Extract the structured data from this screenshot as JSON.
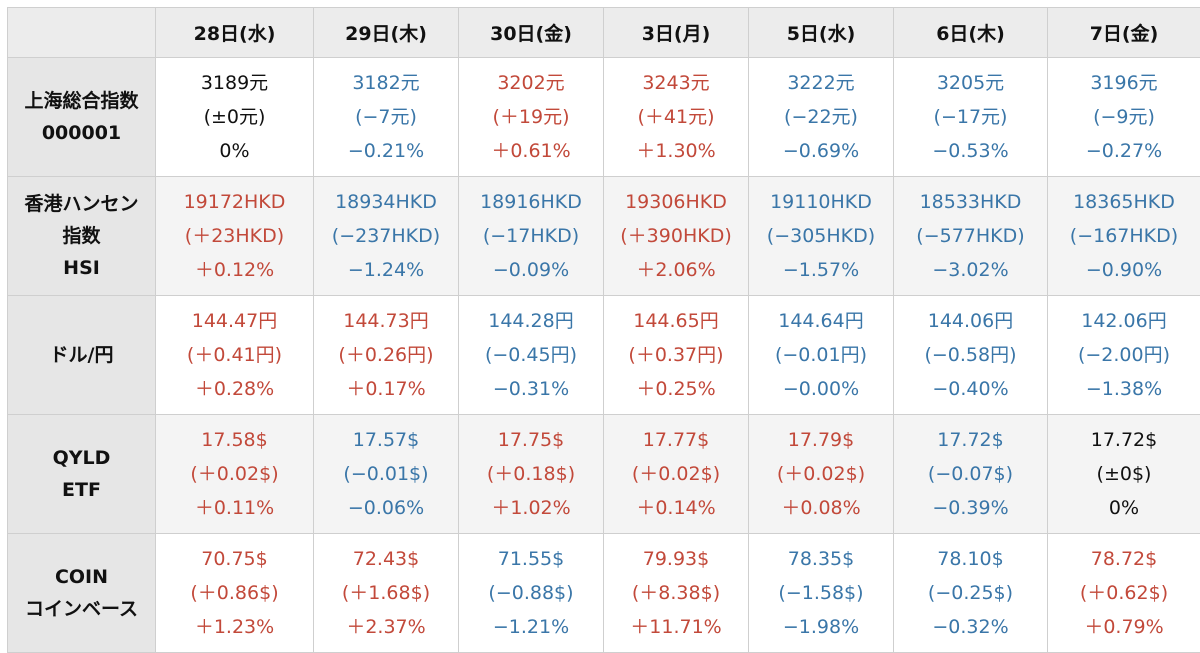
{
  "colors": {
    "up": "#c2493a",
    "down": "#3a76a8",
    "flat": "#111111",
    "header_bg": "#ececec",
    "rowhead_bg": "#e6e6e6"
  },
  "columns": [
    "28日(水)",
    "29日(木)",
    "30日(金)",
    "3日(月)",
    "5日(水)",
    "6日(木)",
    "7日(金)"
  ],
  "rows": [
    {
      "label": [
        "上海総合指数",
        "000001"
      ],
      "cells": [
        {
          "dir": "flat",
          "price": "3189元",
          "change": "(±0元)",
          "pct": "0%"
        },
        {
          "dir": "down",
          "price": "3182元",
          "change": "(−7元)",
          "pct": "−0.21%"
        },
        {
          "dir": "up",
          "price": "3202元",
          "change": "(＋19元)",
          "pct": "＋0.61%"
        },
        {
          "dir": "up",
          "price": "3243元",
          "change": "(＋41元)",
          "pct": "＋1.30%"
        },
        {
          "dir": "down",
          "price": "3222元",
          "change": "(−22元)",
          "pct": "−0.69%"
        },
        {
          "dir": "down",
          "price": "3205元",
          "change": "(−17元)",
          "pct": "−0.53%"
        },
        {
          "dir": "down",
          "price": "3196元",
          "change": "(−9元)",
          "pct": "−0.27%"
        }
      ]
    },
    {
      "label": [
        "香港ハンセン",
        "指数",
        "HSI"
      ],
      "cells": [
        {
          "dir": "up",
          "price": "19172HKD",
          "change": "(＋23HKD)",
          "pct": "＋0.12%"
        },
        {
          "dir": "down",
          "price": "18934HKD",
          "change": "(−237HKD)",
          "pct": "−1.24%"
        },
        {
          "dir": "down",
          "price": "18916HKD",
          "change": "(−17HKD)",
          "pct": "−0.09%"
        },
        {
          "dir": "up",
          "price": "19306HKD",
          "change": "(＋390HKD)",
          "pct": "＋2.06%"
        },
        {
          "dir": "down",
          "price": "19110HKD",
          "change": "(−305HKD)",
          "pct": "−1.57%"
        },
        {
          "dir": "down",
          "price": "18533HKD",
          "change": "(−577HKD)",
          "pct": "−3.02%"
        },
        {
          "dir": "down",
          "price": "18365HKD",
          "change": "(−167HKD)",
          "pct": "−0.90%"
        }
      ]
    },
    {
      "label": [
        "ドル/円"
      ],
      "cells": [
        {
          "dir": "up",
          "price": "144.47円",
          "change": "(＋0.41円)",
          "pct": "＋0.28%"
        },
        {
          "dir": "up",
          "price": "144.73円",
          "change": "(＋0.26円)",
          "pct": "＋0.17%"
        },
        {
          "dir": "down",
          "price": "144.28円",
          "change": "(−0.45円)",
          "pct": "−0.31%"
        },
        {
          "dir": "up",
          "price": "144.65円",
          "change": "(＋0.37円)",
          "pct": "＋0.25%"
        },
        {
          "dir": "down",
          "price": "144.64円",
          "change": "(−0.01円)",
          "pct": "−0.00%"
        },
        {
          "dir": "down",
          "price": "144.06円",
          "change": "(−0.58円)",
          "pct": "−0.40%"
        },
        {
          "dir": "down",
          "price": "142.06円",
          "change": "(−2.00円)",
          "pct": "−1.38%"
        }
      ]
    },
    {
      "label": [
        "QYLD",
        "ETF"
      ],
      "cells": [
        {
          "dir": "up",
          "price": "17.58$",
          "change": "(＋0.02$)",
          "pct": "＋0.11%"
        },
        {
          "dir": "down",
          "price": "17.57$",
          "change": "(−0.01$)",
          "pct": "−0.06%"
        },
        {
          "dir": "up",
          "price": "17.75$",
          "change": "(＋0.18$)",
          "pct": "＋1.02%"
        },
        {
          "dir": "up",
          "price": "17.77$",
          "change": "(＋0.02$)",
          "pct": "＋0.14%"
        },
        {
          "dir": "up",
          "price": "17.79$",
          "change": "(＋0.02$)",
          "pct": "＋0.08%"
        },
        {
          "dir": "down",
          "price": "17.72$",
          "change": "(−0.07$)",
          "pct": "−0.39%"
        },
        {
          "dir": "flat",
          "price": "17.72$",
          "change": "(±0$)",
          "pct": "0%"
        }
      ]
    },
    {
      "label": [
        "COIN",
        "コインベース"
      ],
      "cells": [
        {
          "dir": "up",
          "price": "70.75$",
          "change": "(＋0.86$)",
          "pct": "＋1.23%"
        },
        {
          "dir": "up",
          "price": "72.43$",
          "change": "(＋1.68$)",
          "pct": "＋2.37%"
        },
        {
          "dir": "down",
          "price": "71.55$",
          "change": "(−0.88$)",
          "pct": "−1.21%"
        },
        {
          "dir": "up",
          "price": "79.93$",
          "change": "(＋8.38$)",
          "pct": "＋11.71%"
        },
        {
          "dir": "down",
          "price": "78.35$",
          "change": "(−1.58$)",
          "pct": "−1.98%"
        },
        {
          "dir": "down",
          "price": "78.10$",
          "change": "(−0.25$)",
          "pct": "−0.32%"
        },
        {
          "dir": "up",
          "price": "78.72$",
          "change": "(＋0.62$)",
          "pct": "＋0.79%"
        }
      ]
    }
  ]
}
